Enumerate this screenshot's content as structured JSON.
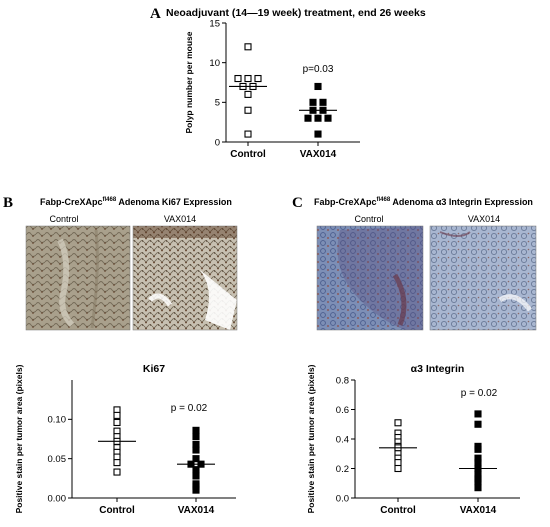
{
  "panel_a": {
    "letter": "A",
    "title": "Neoadjuvant (14—19 week) treatment, end 26 weeks"
  },
  "panel_b": {
    "letter": "B",
    "micro_title_pre": "Fabp-CreXApc",
    "micro_title_sup": "fl468",
    "micro_title_post": " Adenoma Ki67 Expression",
    "label_control": "Control",
    "label_treated": "VAX014"
  },
  "panel_c": {
    "letter": "C",
    "micro_title_pre": "Fabp-CreXApc",
    "micro_title_sup": "fl468",
    "micro_title_post": " Adenoma α3 Integrin Expression",
    "label_control": "Control",
    "label_treated": "VAX014"
  },
  "colors": {
    "ki67_tissue": "#a9a08c",
    "ki67_stain": "#5a3a24",
    "integrin_tissue": "#7d8fb6",
    "integrin_stain": "#6a3a4c"
  },
  "chart_data": [
    {
      "id": "polyp",
      "type": "scatter",
      "title": "",
      "xlabel": "",
      "ylabel": "Polyp number per mouse",
      "categories": [
        "Control",
        "VAX014"
      ],
      "ylim": [
        0,
        15
      ],
      "yticks": [
        0,
        5,
        10,
        15
      ],
      "grid": false,
      "annotation": "p=0.03",
      "series": [
        {
          "category": "Control",
          "marker": "open-square",
          "median": 7,
          "values": [
            12,
            8,
            8,
            8,
            7,
            7,
            6,
            4,
            1
          ]
        },
        {
          "category": "VAX014",
          "marker": "filled-square",
          "median": 4,
          "values": [
            7,
            5,
            5,
            4,
            4,
            3,
            3,
            3,
            1
          ]
        }
      ]
    },
    {
      "id": "ki67",
      "type": "scatter",
      "title": "Ki67",
      "xlabel": "",
      "ylabel": "Positive stain per tumor area (pixels)",
      "categories": [
        "Control",
        "VAX014"
      ],
      "ylim": [
        0,
        0.15
      ],
      "yticks": [
        0.0,
        0.05,
        0.1
      ],
      "yticklabels": [
        "0.00",
        "0.05",
        "0.10"
      ],
      "grid": false,
      "annotation": "p = 0.02",
      "series": [
        {
          "category": "Control",
          "marker": "open-square",
          "median": 0.072,
          "values": [
            0.112,
            0.105,
            0.096,
            0.085,
            0.078,
            0.072,
            0.064,
            0.058,
            0.052,
            0.045,
            0.033
          ]
        },
        {
          "category": "VAX014",
          "marker": "filled-square",
          "median": 0.043,
          "values": [
            0.086,
            0.078,
            0.068,
            0.061,
            0.05,
            0.043,
            0.043,
            0.036,
            0.028,
            0.018,
            0.015,
            0.01
          ]
        }
      ]
    },
    {
      "id": "integrin",
      "type": "scatter",
      "title": "α3 Integrin",
      "xlabel": "",
      "ylabel": "Positive stain per tumor area (pixels)",
      "categories": [
        "Control",
        "VAX014"
      ],
      "ylim": [
        0,
        0.8
      ],
      "yticks": [
        0.0,
        0.2,
        0.4,
        0.6,
        0.8
      ],
      "yticklabels": [
        "0.0",
        "0.2",
        "0.4",
        "0.6",
        "0.8"
      ],
      "grid": false,
      "annotation": "p = 0.02",
      "series": [
        {
          "category": "Control",
          "marker": "open-square",
          "median": 0.34,
          "values": [
            0.51,
            0.44,
            0.41,
            0.38,
            0.35,
            0.34,
            0.3,
            0.27,
            0.24,
            0.2
          ]
        },
        {
          "category": "VAX014",
          "marker": "filled-square",
          "median": 0.2,
          "values": [
            0.57,
            0.5,
            0.35,
            0.33,
            0.27,
            0.24,
            0.2,
            0.16,
            0.13,
            0.11,
            0.07
          ]
        }
      ]
    }
  ]
}
